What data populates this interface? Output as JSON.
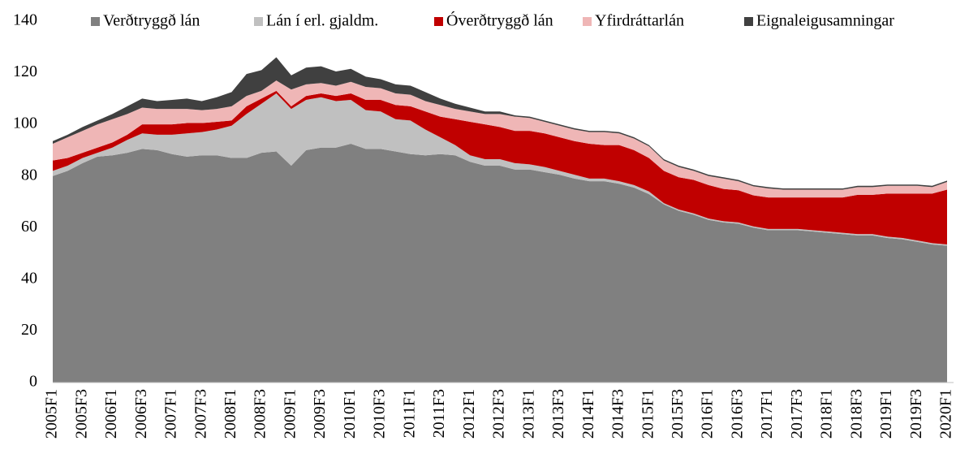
{
  "chart_data": {
    "type": "stacked_area",
    "categories": [
      "2005F1",
      null,
      "2005F3",
      null,
      "2006F1",
      null,
      "2006F3",
      null,
      "2007F1",
      null,
      "2007F3",
      null,
      "2008F1",
      null,
      "2008F3",
      null,
      "2009F1",
      null,
      "2009F3",
      null,
      "2010F1",
      null,
      "2010F3",
      null,
      "2011F1",
      null,
      "2011F3",
      null,
      "2012F1",
      null,
      "2012F3",
      null,
      "2013F1",
      null,
      "2013F3",
      null,
      "2014F1",
      null,
      "2014F3",
      null,
      "2015F1",
      null,
      "2015F3",
      null,
      "2016F1",
      null,
      "2016F3",
      null,
      "2017F1",
      null,
      "2017F3",
      null,
      "2018F1",
      null,
      "2018F3",
      null,
      "2019F1",
      null,
      "2019F3",
      null,
      "2020F1"
    ],
    "series": [
      {
        "name": "Verðtryggð lán",
        "color": "#808080",
        "values": [
          80,
          82,
          85,
          87.5,
          88,
          89,
          90.5,
          90,
          88.5,
          87.5,
          88,
          88,
          87,
          87,
          89,
          89.5,
          84,
          90,
          91,
          91,
          92.5,
          90.5,
          90.5,
          89.5,
          88.5,
          88,
          88.5,
          88,
          85.5,
          84,
          84,
          82.5,
          82.5,
          81.5,
          80.5,
          79,
          78,
          78,
          77,
          75.5,
          73,
          69,
          66.5,
          65,
          63,
          62,
          61.5,
          60,
          59,
          59,
          59,
          58.5,
          58,
          57.5,
          57,
          57,
          56,
          55.5,
          54.5,
          53.5,
          53
        ]
      },
      {
        "name": "Lán í erl. gjaldm.",
        "color": "#c0c0c0",
        "values": [
          2,
          2,
          2,
          1.5,
          3,
          5,
          6,
          6,
          7.5,
          9,
          9,
          10,
          12.5,
          17,
          19,
          22.5,
          22,
          19.5,
          19.5,
          18,
          17,
          15,
          14.5,
          12.5,
          13,
          10,
          6.5,
          4,
          2.5,
          2.5,
          2.5,
          2.5,
          2,
          2,
          1.5,
          1.5,
          1,
          1,
          1,
          1,
          1,
          0.5,
          0.5,
          0.5,
          0.5,
          0.5,
          0.5,
          0.5,
          0.5,
          0.5,
          0.5,
          0.5,
          0.5,
          0.5,
          0.5,
          0.5,
          0.5,
          0.5,
          0.5,
          0.5,
          0.5
        ]
      },
      {
        "name": "Óverðtryggð lán",
        "color": "#c00000",
        "values": [
          4,
          3,
          2,
          2,
          2,
          2,
          3.5,
          4,
          4,
          4,
          3.5,
          3,
          2,
          3,
          2,
          1,
          1,
          1.5,
          1.5,
          2,
          2.5,
          4,
          4.5,
          5.5,
          5.5,
          7,
          8,
          10,
          13,
          13.5,
          12.5,
          12.5,
          13,
          13,
          13,
          13,
          13.5,
          13,
          14,
          13.5,
          13,
          12.5,
          12.5,
          13,
          13,
          12.5,
          12.5,
          12,
          12.2,
          12.2,
          12.2,
          12.7,
          13.2,
          13.7,
          15.2,
          15.2,
          16.7,
          17.2,
          18.2,
          19.2,
          21.2
        ]
      },
      {
        "name": "Yfirdráttarlán",
        "color": "#efb6b6",
        "values": [
          6.5,
          8,
          8.5,
          9,
          9,
          8,
          6.5,
          6,
          6,
          5.5,
          5,
          5,
          5.5,
          4,
          3,
          4,
          6.5,
          4.5,
          4,
          4,
          4.5,
          5,
          4.5,
          4.5,
          4.5,
          4,
          4.5,
          4,
          4,
          4,
          5,
          5.5,
          5,
          4.5,
          4.5,
          4.5,
          4.5,
          5,
          4.5,
          4.5,
          4.5,
          4,
          4,
          3.5,
          3.5,
          4,
          3.5,
          3.5,
          3.5,
          3,
          3,
          3,
          3,
          3,
          3,
          3,
          3,
          3,
          3,
          2.5,
          3
        ]
      },
      {
        "name": "Eignaleigusamningar",
        "color": "#404040",
        "values": [
          1,
          1,
          1.5,
          1.5,
          2,
          3,
          3.5,
          3,
          3.5,
          4,
          3.5,
          4.5,
          5.5,
          8.5,
          8,
          9,
          5.5,
          6.5,
          6.5,
          5.5,
          5,
          4,
          3.5,
          3.5,
          3.5,
          3.5,
          2.5,
          2,
          1.5,
          1,
          1,
          0.5,
          0.5,
          0.5,
          0.5,
          0.5,
          0.5,
          0.5,
          0.5,
          0.5,
          0.5,
          0.5,
          0.5,
          0.5,
          0.5,
          0.5,
          0.5,
          0.5,
          0.5,
          0.5,
          0.5,
          0.5,
          0.5,
          0.5,
          0.5,
          0.5,
          0.5,
          0.5,
          0.5,
          0.5,
          0.5
        ]
      }
    ],
    "ylim": [
      0,
      140
    ],
    "yticks": [
      0,
      20,
      40,
      60,
      80,
      100,
      120,
      140
    ],
    "legend": "top"
  }
}
